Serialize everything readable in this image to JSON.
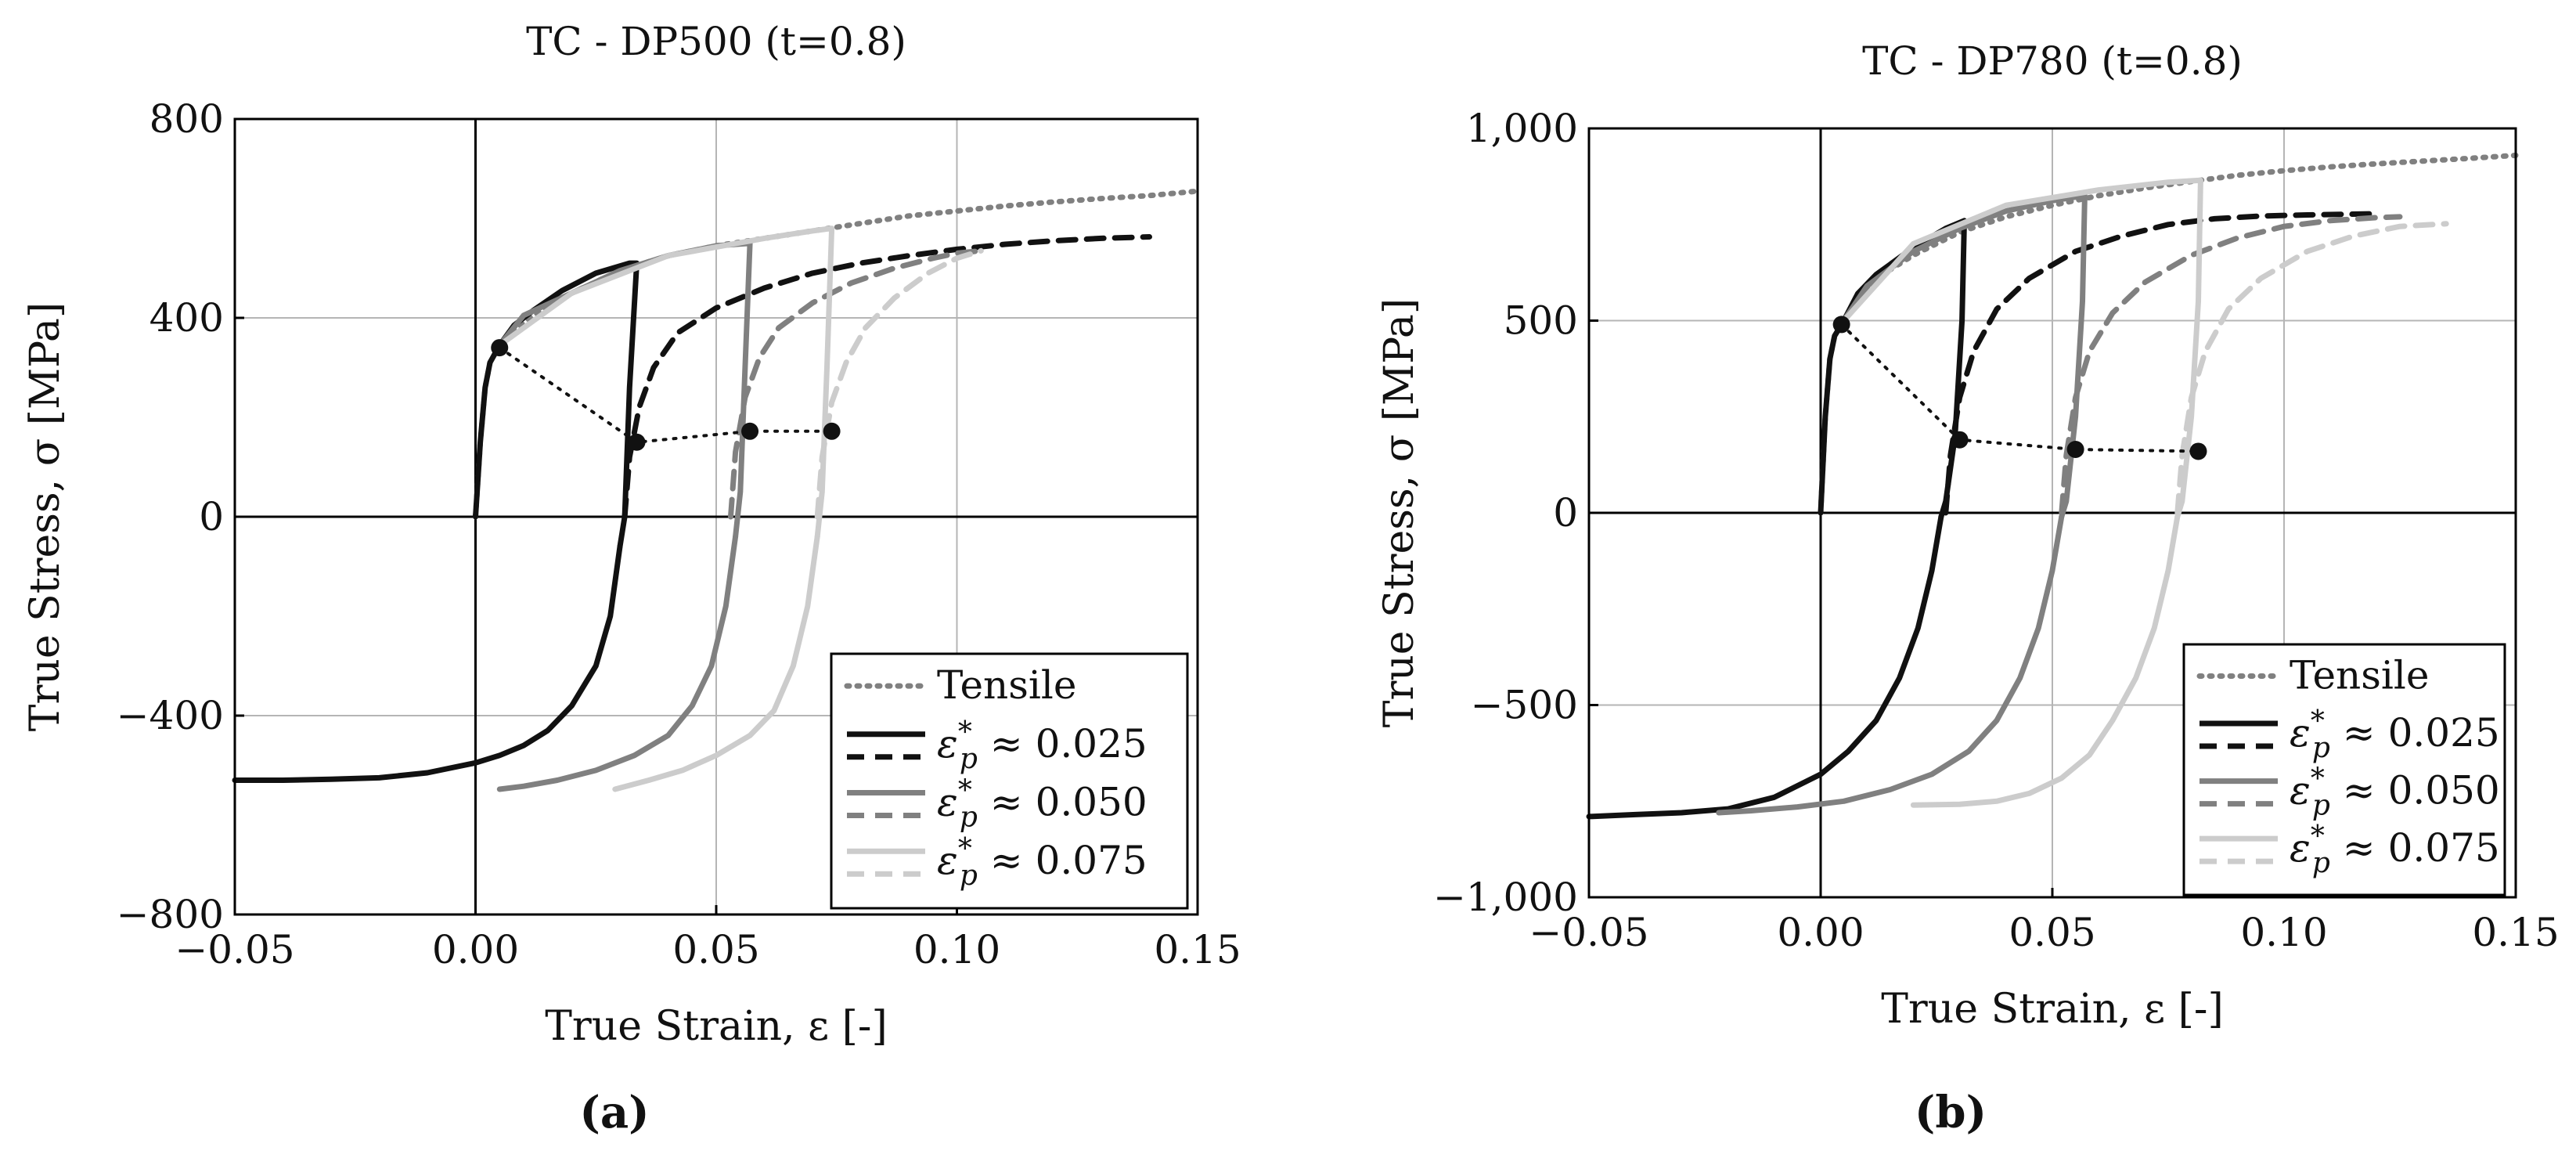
{
  "chart_data": [
    {
      "type": "line",
      "id": "a",
      "title": "TC - DP500 (t=0.8)",
      "xlabel": "True Strain, ε [-]",
      "ylabel": "True Stress, σ [MPa]",
      "subcaption": "(a)",
      "xlim": [
        -0.05,
        0.15
      ],
      "ylim": [
        -800,
        800
      ],
      "xticks": [
        -0.05,
        0.0,
        0.05,
        0.1,
        0.15
      ],
      "xtick_labels": [
        "−0.05",
        "0.00",
        "0.05",
        "0.10",
        "0.15"
      ],
      "yticks": [
        -800,
        -400,
        0,
        400,
        800
      ],
      "ytick_labels": [
        "−800",
        "−400",
        "0",
        "400",
        "800"
      ],
      "grid": true,
      "legend_position": "bottom-right",
      "legend": [
        {
          "label": "Tensile",
          "style": "dotted",
          "color": "#808080"
        },
        {
          "label": "ε*p ≈ 0.025",
          "style": "solid+dashed",
          "color": "#111111"
        },
        {
          "label": "ε*p ≈ 0.050",
          "style": "solid+dashed",
          "color": "#808080"
        },
        {
          "label": "ε*p ≈ 0.075",
          "style": "solid+dashed",
          "color": "#cccccc"
        }
      ],
      "series": [
        {
          "name": "Tensile",
          "style": "dotted",
          "color": "#808080",
          "x": [
            0.0,
            0.001,
            0.002,
            0.003,
            0.005,
            0.008,
            0.012,
            0.02,
            0.03,
            0.04,
            0.05,
            0.06,
            0.07,
            0.08,
            0.09,
            0.1,
            0.11,
            0.12,
            0.13,
            0.14,
            0.15
          ],
          "y": [
            0,
            150,
            260,
            310,
            345,
            375,
            405,
            450,
            495,
            525,
            545,
            560,
            575,
            590,
            605,
            615,
            625,
            633,
            640,
            646,
            655
          ]
        },
        {
          "name": "ε*p ≈ 0.025 loading",
          "style": "solid",
          "color": "#111111",
          "x": [
            0.0,
            0.001,
            0.002,
            0.003,
            0.005,
            0.008,
            0.012,
            0.018,
            0.025,
            0.032,
            0.0335,
            0.032,
            0.031,
            0.03
          ],
          "y": [
            0,
            150,
            260,
            310,
            345,
            385,
            415,
            455,
            490,
            510,
            510,
            260,
            0,
            -60
          ]
        },
        {
          "name": "ε*p ≈ 0.025 reverse",
          "style": "solid",
          "color": "#111111",
          "x": [
            0.03,
            0.028,
            0.025,
            0.02,
            0.015,
            0.01,
            0.005,
            0.0,
            -0.01,
            -0.02,
            -0.03,
            -0.04,
            -0.05
          ],
          "y": [
            -60,
            -200,
            -300,
            -380,
            -430,
            -460,
            -480,
            -495,
            -515,
            -525,
            -528,
            -530,
            -530
          ]
        },
        {
          "name": "ε*p ≈ 0.025 reload",
          "style": "dashed",
          "color": "#111111",
          "x": [
            0.031,
            0.032,
            0.034,
            0.037,
            0.042,
            0.05,
            0.06,
            0.07,
            0.08,
            0.09,
            0.1,
            0.11,
            0.12,
            0.13,
            0.14
          ],
          "y": [
            0,
            120,
            220,
            300,
            370,
            420,
            460,
            490,
            510,
            525,
            538,
            548,
            555,
            560,
            563
          ]
        },
        {
          "name": "ε*p ≈ 0.050 loading",
          "style": "solid",
          "color": "#808080",
          "x": [
            0.005,
            0.01,
            0.02,
            0.03,
            0.04,
            0.05,
            0.057,
            0.056,
            0.055,
            0.054
          ],
          "y": [
            345,
            405,
            450,
            495,
            525,
            545,
            550,
            300,
            50,
            -40
          ]
        },
        {
          "name": "ε*p ≈ 0.050 reverse",
          "style": "solid",
          "color": "#808080",
          "x": [
            0.054,
            0.052,
            0.049,
            0.045,
            0.04,
            0.033,
            0.025,
            0.017,
            0.01,
            0.005
          ],
          "y": [
            -40,
            -180,
            -300,
            -380,
            -440,
            -480,
            -510,
            -530,
            -542,
            -548
          ]
        },
        {
          "name": "ε*p ≈ 0.050 reload",
          "style": "dashed",
          "color": "#808080",
          "x": [
            0.053,
            0.054,
            0.056,
            0.059,
            0.063,
            0.07,
            0.078,
            0.087,
            0.095,
            0.1,
            0.105
          ],
          "y": [
            0,
            130,
            240,
            320,
            380,
            430,
            470,
            500,
            520,
            530,
            535
          ]
        },
        {
          "name": "ε*p ≈ 0.075 loading",
          "style": "solid",
          "color": "#cccccc",
          "x": [
            0.005,
            0.02,
            0.04,
            0.06,
            0.07,
            0.074,
            0.073,
            0.072,
            0.071
          ],
          "y": [
            345,
            450,
            525,
            560,
            575,
            580,
            300,
            50,
            -40
          ]
        },
        {
          "name": "ε*p ≈ 0.075 reverse",
          "style": "solid",
          "color": "#cccccc",
          "x": [
            0.071,
            0.069,
            0.066,
            0.062,
            0.057,
            0.05,
            0.043,
            0.036,
            0.029
          ],
          "y": [
            -40,
            -180,
            -300,
            -390,
            -440,
            -480,
            -510,
            -530,
            -548
          ]
        },
        {
          "name": "ε*p ≈ 0.075 reload",
          "style": "dashed",
          "color": "#cccccc",
          "x": [
            0.071,
            0.072,
            0.074,
            0.077,
            0.081,
            0.087,
            0.094,
            0.1,
            0.105
          ],
          "y": [
            0,
            120,
            230,
            310,
            380,
            440,
            490,
            520,
            535
          ]
        },
        {
          "name": "markers",
          "style": "dotted-markers",
          "color": "#111111",
          "x": [
            0.005,
            0.0335,
            0.057,
            0.074
          ],
          "y": [
            340,
            150,
            172,
            172
          ]
        }
      ]
    },
    {
      "type": "line",
      "id": "b",
      "title": "TC - DP780 (t=0.8)",
      "xlabel": "True Strain, ε [-]",
      "ylabel": "True Stress, σ [MPa]",
      "subcaption": "(b)",
      "xlim": [
        -0.05,
        0.15
      ],
      "ylim": [
        -1000,
        1000
      ],
      "xticks": [
        -0.05,
        0.0,
        0.05,
        0.1,
        0.15
      ],
      "xtick_labels": [
        "−0.05",
        "0.00",
        "0.05",
        "0.10",
        "0.15"
      ],
      "yticks": [
        -1000,
        -500,
        0,
        500,
        1000
      ],
      "ytick_labels": [
        "−1,000",
        "−500",
        "0",
        "500",
        "1,000"
      ],
      "grid": true,
      "legend_position": "bottom-right",
      "legend": [
        {
          "label": "Tensile",
          "style": "dotted",
          "color": "#808080"
        },
        {
          "label": "ε*p ≈ 0.025",
          "style": "solid+dashed",
          "color": "#111111"
        },
        {
          "label": "ε*p ≈ 0.050",
          "style": "solid+dashed",
          "color": "#808080"
        },
        {
          "label": "ε*p ≈ 0.075",
          "style": "solid+dashed",
          "color": "#cccccc"
        }
      ],
      "series": [
        {
          "name": "Tensile",
          "style": "dotted",
          "color": "#808080",
          "x": [
            0.0,
            0.001,
            0.002,
            0.003,
            0.005,
            0.008,
            0.012,
            0.02,
            0.03,
            0.04,
            0.05,
            0.06,
            0.07,
            0.08,
            0.09,
            0.1,
            0.11,
            0.12,
            0.13,
            0.14,
            0.15
          ],
          "y": [
            0,
            250,
            400,
            460,
            500,
            560,
            610,
            670,
            730,
            770,
            800,
            825,
            845,
            862,
            878,
            890,
            900,
            908,
            915,
            922,
            930
          ]
        },
        {
          "name": "ε*p ≈ 0.025 loading",
          "style": "solid",
          "color": "#111111",
          "x": [
            0.0,
            0.001,
            0.002,
            0.003,
            0.005,
            0.008,
            0.012,
            0.02,
            0.027,
            0.031,
            0.0305,
            0.029,
            0.027,
            0.026
          ],
          "y": [
            0,
            250,
            400,
            460,
            500,
            570,
            620,
            690,
            740,
            760,
            500,
            200,
            30,
            -10
          ]
        },
        {
          "name": "ε*p ≈ 0.025 reverse",
          "style": "solid",
          "color": "#111111",
          "x": [
            0.026,
            0.024,
            0.021,
            0.017,
            0.012,
            0.006,
            0.0,
            -0.01,
            -0.02,
            -0.03,
            -0.04,
            -0.05
          ],
          "y": [
            -10,
            -150,
            -300,
            -430,
            -540,
            -620,
            -680,
            -740,
            -770,
            -780,
            -785,
            -790
          ]
        },
        {
          "name": "ε*p ≈ 0.025 reload",
          "style": "dashed",
          "color": "#111111",
          "x": [
            0.027,
            0.028,
            0.03,
            0.033,
            0.038,
            0.045,
            0.055,
            0.065,
            0.075,
            0.085,
            0.095,
            0.105,
            0.12
          ],
          "y": [
            0,
            150,
            300,
            420,
            530,
            610,
            680,
            720,
            750,
            765,
            772,
            775,
            778
          ]
        },
        {
          "name": "ε*p ≈ 0.050 loading",
          "style": "solid",
          "color": "#808080",
          "x": [
            0.005,
            0.01,
            0.02,
            0.03,
            0.04,
            0.05,
            0.057,
            0.0565,
            0.055,
            0.053,
            0.052
          ],
          "y": [
            500,
            590,
            680,
            740,
            785,
            812,
            825,
            550,
            250,
            30,
            -10
          ]
        },
        {
          "name": "ε*p ≈ 0.050 reverse",
          "style": "solid",
          "color": "#808080",
          "x": [
            0.052,
            0.05,
            0.047,
            0.043,
            0.038,
            0.032,
            0.024,
            0.015,
            0.005,
            -0.005,
            -0.015,
            -0.022
          ],
          "y": [
            -10,
            -150,
            -300,
            -430,
            -540,
            -620,
            -680,
            -720,
            -750,
            -765,
            -775,
            -780
          ]
        },
        {
          "name": "ε*p ≈ 0.050 reload",
          "style": "dashed",
          "color": "#808080",
          "x": [
            0.052,
            0.053,
            0.055,
            0.058,
            0.063,
            0.07,
            0.08,
            0.09,
            0.1,
            0.11,
            0.12,
            0.125
          ],
          "y": [
            0,
            150,
            300,
            420,
            520,
            600,
            670,
            715,
            745,
            760,
            768,
            770
          ]
        },
        {
          "name": "ε*p ≈ 0.075 loading",
          "style": "solid",
          "color": "#cccccc",
          "x": [
            0.005,
            0.02,
            0.04,
            0.06,
            0.075,
            0.082,
            0.0815,
            0.08,
            0.078,
            0.077
          ],
          "y": [
            500,
            700,
            800,
            840,
            860,
            865,
            550,
            250,
            30,
            -10
          ]
        },
        {
          "name": "ε*p ≈ 0.075 reverse",
          "style": "solid",
          "color": "#cccccc",
          "x": [
            0.077,
            0.075,
            0.072,
            0.068,
            0.063,
            0.058,
            0.052,
            0.045,
            0.038,
            0.03,
            0.02
          ],
          "y": [
            -10,
            -150,
            -300,
            -430,
            -540,
            -630,
            -690,
            -730,
            -750,
            -758,
            -760
          ]
        },
        {
          "name": "ε*p ≈ 0.075 reload",
          "style": "dashed",
          "color": "#cccccc",
          "x": [
            0.077,
            0.078,
            0.08,
            0.083,
            0.088,
            0.095,
            0.105,
            0.115,
            0.125,
            0.135
          ],
          "y": [
            0,
            150,
            300,
            420,
            530,
            610,
            680,
            720,
            745,
            752
          ]
        },
        {
          "name": "markers",
          "style": "dotted-markers",
          "color": "#111111",
          "x": [
            0.0045,
            0.03,
            0.055,
            0.0815
          ],
          "y": [
            490,
            190,
            165,
            160
          ]
        }
      ]
    }
  ]
}
